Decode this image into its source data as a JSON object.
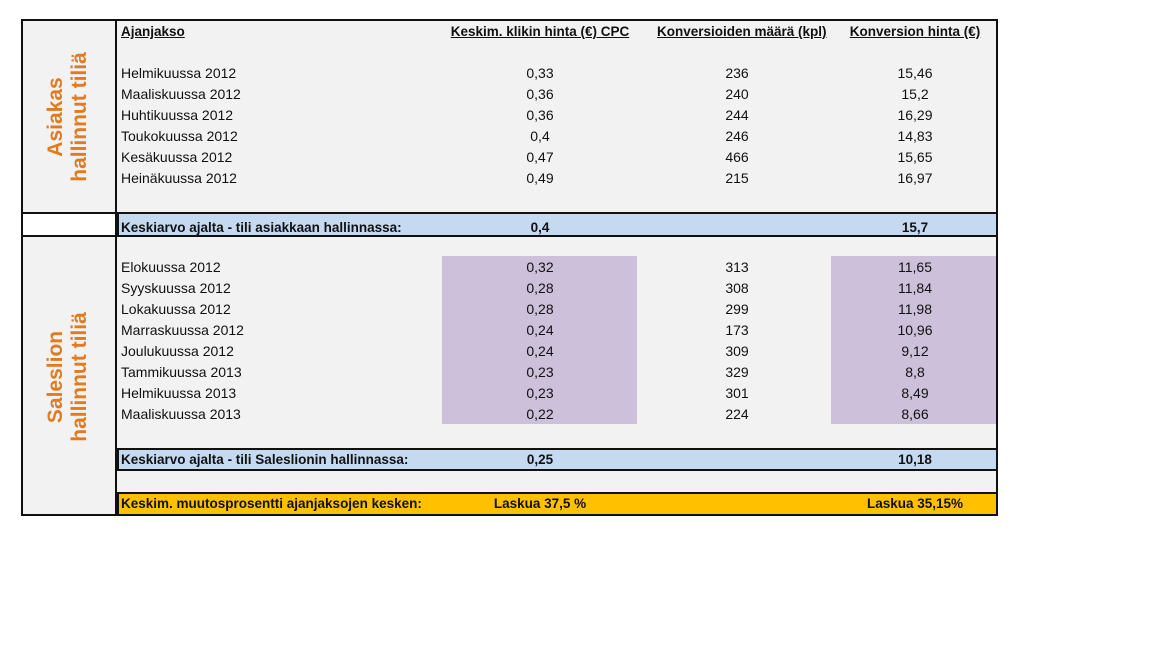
{
  "header": {
    "period": "Ajanjakso",
    "cpc": "Keskim. klikin hinta (€) CPC",
    "conversions": "Konversioiden määrä (kpl)",
    "conv_price": "Konversion hinta (€)"
  },
  "section1": {
    "side_label_line1": "Asiakas",
    "side_label_line2": "hallinnut tiliä",
    "rows": [
      {
        "period": "Helmikuussa 2012",
        "cpc": "0,33",
        "conversions": "236",
        "conv_price": "15,46"
      },
      {
        "period": "Maaliskuussa 2012",
        "cpc": "0,36",
        "conversions": "240",
        "conv_price": "15,2"
      },
      {
        "period": "Huhtikuussa 2012",
        "cpc": "0,36",
        "conversions": "244",
        "conv_price": "16,29"
      },
      {
        "period": "Toukokuussa 2012",
        "cpc": "0,4",
        "conversions": "246",
        "conv_price": "14,83"
      },
      {
        "period": "Kesäkuussa 2012",
        "cpc": "0,47",
        "conversions": "466",
        "conv_price": "15,65"
      },
      {
        "period": "Heinäkuussa 2012",
        "cpc": "0,49",
        "conversions": "215",
        "conv_price": "16,97"
      }
    ],
    "average": {
      "label": "Keskiarvo ajalta - tili  asiakkaan hallinnassa:",
      "cpc": "0,4",
      "conv_price": "15,7"
    }
  },
  "section2": {
    "side_label_line1": "Saleslion",
    "side_label_line2": "hallinnut tiliä",
    "rows": [
      {
        "period": "Elokuussa 2012",
        "cpc": "0,32",
        "conversions": "313",
        "conv_price": "11,65"
      },
      {
        "period": "Syyskuussa 2012",
        "cpc": "0,28",
        "conversions": "308",
        "conv_price": "11,84"
      },
      {
        "period": "Lokakuussa 2012",
        "cpc": "0,28",
        "conversions": "299",
        "conv_price": "11,98"
      },
      {
        "period": "Marraskuussa 2012",
        "cpc": "0,24",
        "conversions": "173",
        "conv_price": "10,96"
      },
      {
        "period": "Joulukuussa 2012",
        "cpc": "0,24",
        "conversions": "309",
        "conv_price": "9,12"
      },
      {
        "period": "Tammikuussa 2013",
        "cpc": "0,23",
        "conversions": "329",
        "conv_price": "8,8"
      },
      {
        "period": "Helmikuussa 2013",
        "cpc": "0,23",
        "conversions": "301",
        "conv_price": "8,49"
      },
      {
        "period": "Maaliskuussa 2013",
        "cpc": "0,22",
        "conversions": "224",
        "conv_price": "8,66"
      }
    ],
    "average": {
      "label": "Keskiarvo ajalta - tili Saleslionin hallinnassa:",
      "cpc": "0,25",
      "conv_price": "10,18"
    }
  },
  "summary": {
    "label": "Keskim. muutosprosentti ajanjaksojen kesken:",
    "cpc": "Laskua 37,5 %",
    "conv_price": "Laskua 35,15%"
  },
  "colors": {
    "side_label": "#e07b22",
    "average_band": "#c5d9f1",
    "highlight": "#ccc0da",
    "summary_band": "#ffc000",
    "panel": "#f2f2f2"
  }
}
